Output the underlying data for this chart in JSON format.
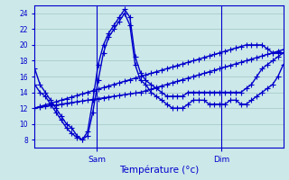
{
  "xlabel": "Température (°c)",
  "ylim": [
    7,
    25
  ],
  "xlim": [
    0,
    96
  ],
  "background_color": "#cce8e8",
  "grid_color": "#aacccc",
  "line_color": "#0000cc",
  "marker": "+",
  "markersize": 4,
  "linewidth": 1.0,
  "sam_x": 24,
  "dim_x": 72,
  "yticks": [
    8,
    10,
    12,
    14,
    16,
    18,
    20,
    22,
    24
  ],
  "series": [
    [
      17,
      15,
      14,
      13,
      12,
      11,
      10,
      9.5,
      8.5,
      8,
      9,
      13,
      17.5,
      20,
      21.5,
      22.5,
      23.5,
      24.5,
      23.5,
      18.5,
      16.5,
      15.5,
      15,
      14.5,
      14,
      13.5,
      13.5,
      13.5,
      13.5,
      14,
      14,
      14,
      14,
      14,
      14,
      14,
      14,
      14,
      14,
      14,
      14.5,
      15,
      16,
      17,
      17.5,
      18,
      18.5,
      19
    ],
    [
      12,
      12.2,
      12.4,
      12.6,
      12.8,
      13,
      13.2,
      13.4,
      13.6,
      13.8,
      14,
      14.2,
      14.4,
      14.6,
      14.8,
      15,
      15.2,
      15.4,
      15.6,
      15.8,
      16,
      16.2,
      16.4,
      16.6,
      16.8,
      17,
      17.2,
      17.4,
      17.6,
      17.8,
      18,
      18.2,
      18.4,
      18.6,
      18.8,
      19,
      19.2,
      19.4,
      19.6,
      19.8,
      20,
      20,
      20,
      20,
      19.5,
      19,
      19,
      19
    ],
    [
      12,
      12.1,
      12.2,
      12.3,
      12.4,
      12.5,
      12.6,
      12.7,
      12.8,
      12.9,
      13,
      13.1,
      13.2,
      13.3,
      13.4,
      13.5,
      13.6,
      13.7,
      13.8,
      13.9,
      14,
      14.2,
      14.4,
      14.6,
      14.8,
      15,
      15.2,
      15.4,
      15.6,
      15.8,
      16,
      16.2,
      16.4,
      16.6,
      16.8,
      17,
      17.2,
      17.4,
      17.6,
      17.8,
      18,
      18.2,
      18.4,
      18.6,
      18.8,
      19,
      19.2,
      19.4
    ],
    [
      15,
      14,
      13.5,
      12.5,
      11.5,
      10.5,
      9.5,
      8.8,
      8.3,
      8,
      8.5,
      11.5,
      15.5,
      19,
      21,
      22,
      23,
      24,
      22.5,
      17.5,
      15.5,
      15,
      14,
      13.5,
      13,
      12.5,
      12,
      12,
      12,
      12.5,
      13,
      13,
      13,
      12.5,
      12.5,
      12.5,
      12.5,
      13,
      13,
      12.5,
      12.5,
      13,
      13.5,
      14,
      14.5,
      15,
      16,
      17.5
    ]
  ]
}
